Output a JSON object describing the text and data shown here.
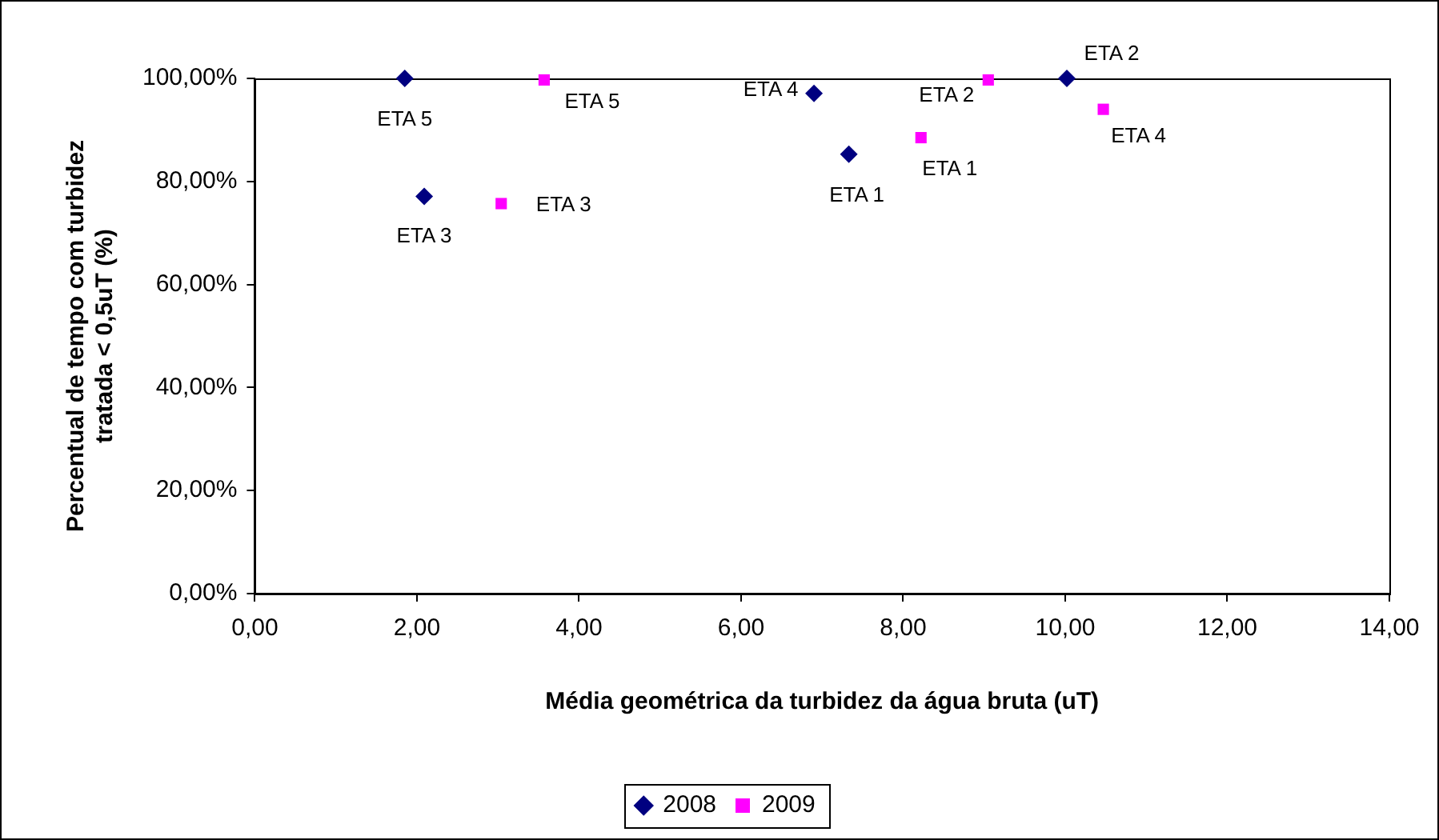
{
  "chart_data": {
    "type": "scatter",
    "xlabel": "Média geométrica da turbidez da água bruta (uT)",
    "ylabel": "Percentual de tempo com turbidez tratada < 0,5uT (%)",
    "xlim": [
      0,
      14
    ],
    "xticks": [
      {
        "value": 0,
        "label": "0,00"
      },
      {
        "value": 2,
        "label": "2,00"
      },
      {
        "value": 4,
        "label": "4,00"
      },
      {
        "value": 6,
        "label": "6,00"
      },
      {
        "value": 8,
        "label": "8,00"
      },
      {
        "value": 10,
        "label": "10,00"
      },
      {
        "value": 12,
        "label": "12,00"
      },
      {
        "value": 14,
        "label": "14,00"
      }
    ],
    "ylim": [
      0,
      100
    ],
    "yticks": [
      {
        "value": 0,
        "label": "0,00%"
      },
      {
        "value": 20,
        "label": "20,00%"
      },
      {
        "value": 40,
        "label": "40,00%"
      },
      {
        "value": 60,
        "label": "60,00%"
      },
      {
        "value": 80,
        "label": "80,00%"
      },
      {
        "value": 100,
        "label": "100,00%"
      }
    ],
    "grid": false,
    "legend": "bottom",
    "series": [
      {
        "name": "2008",
        "color": "#000080",
        "marker": "diamond",
        "x": [
          1.85,
          2.09,
          6.9,
          7.33,
          10.02
        ],
        "values": [
          100,
          77.1,
          97.1,
          85.3,
          100
        ]
      },
      {
        "name": "2009",
        "color": "#ff00ff",
        "marker": "square",
        "x": [
          3.57,
          3.04,
          8.22,
          9.05,
          10.47
        ],
        "values": [
          99.7,
          75.7,
          88.5,
          99.7,
          94.0
        ]
      }
    ],
    "annotations": [
      {
        "text": "ETA 5",
        "x": 1.85,
        "y": 100
      },
      {
        "text": "ETA 3",
        "x": 2.09,
        "y": 77.1
      },
      {
        "text": "ETA 4",
        "x": 6.9,
        "y": 97.1
      },
      {
        "text": "ETA 1",
        "x": 7.33,
        "y": 85.3
      },
      {
        "text": "ETA 2",
        "x": 10.02,
        "y": 100
      },
      {
        "text": "ETA 5",
        "x": 3.57,
        "y": 99.7
      },
      {
        "text": "ETA 3",
        "x": 3.04,
        "y": 75.7
      },
      {
        "text": "ETA 1",
        "x": 8.22,
        "y": 88.5
      },
      {
        "text": "ETA 2",
        "x": 9.05,
        "y": 99.7
      },
      {
        "text": "ETA 4",
        "x": 10.47,
        "y": 94.0
      }
    ]
  }
}
